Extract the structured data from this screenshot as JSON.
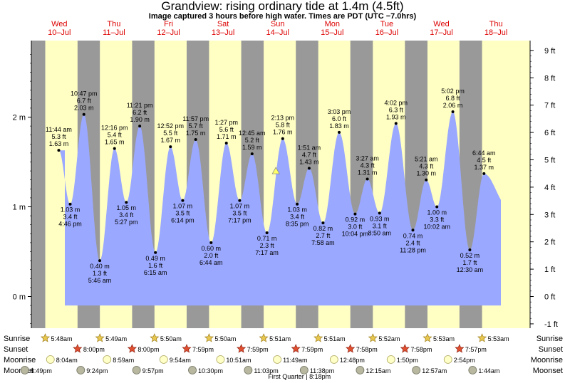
{
  "title": "Grandview: rising  ordinary tide at 1.4m (4.5ft)",
  "subtitle": "Image captured 3 hours before high water. Times are PDT (UTC −7.0hrs)",
  "colors": {
    "tide_fill": "#9aa8ff",
    "day": "#ffffc4",
    "night": "#999999",
    "day_label": "#dd0000"
  },
  "chart_data": {
    "type": "area",
    "title": "Grandview: rising  ordinary tide at 1.4m (4.5ft)",
    "days": [
      {
        "dow": "Wed",
        "date": "10–Jul"
      },
      {
        "dow": "Thu",
        "date": "11–Jul"
      },
      {
        "dow": "Fri",
        "date": "12–Jul"
      },
      {
        "dow": "Sat",
        "date": "13–Jul"
      },
      {
        "dow": "Sun",
        "date": "14–Jul"
      },
      {
        "dow": "Mon",
        "date": "15–Jul"
      },
      {
        "dow": "Tue",
        "date": "16–Jul"
      },
      {
        "dow": "Wed",
        "date": "17–Jul"
      },
      {
        "dow": "Thu",
        "date": "18–Jul"
      }
    ],
    "left_axis": {
      "unit": "m",
      "ticks": [
        "0 m",
        "1 m",
        "2 m"
      ],
      "values": [
        0,
        1,
        2
      ],
      "range": [
        -0.3,
        2.85
      ]
    },
    "right_axis": {
      "unit": "ft",
      "ticks": [
        "-1 ft",
        "0 ft",
        "1 ft",
        "2 ft",
        "3 ft",
        "4 ft",
        "5 ft",
        "6 ft",
        "7 ft",
        "8 ft",
        "9 ft"
      ],
      "values": [
        -1,
        0,
        1,
        2,
        3,
        4,
        5,
        6,
        7,
        8,
        9
      ]
    },
    "extremes": [
      {
        "day": 0,
        "time": "11:44 am",
        "m": 1.63,
        "ft": "5.3 ft",
        "m_label": "1.63 m",
        "type": "high"
      },
      {
        "day": 0,
        "time": "4:46 pm",
        "m": 1.03,
        "ft": "3.4 ft",
        "m_label": "1.03 m",
        "type": "low"
      },
      {
        "day": 0,
        "time": "10:47 pm",
        "m": 2.03,
        "ft": "6.7 ft",
        "m_label": "2.03 m",
        "type": "high"
      },
      {
        "day": 1,
        "time": "5:46 am",
        "m": 0.4,
        "ft": "1.3 ft",
        "m_label": "0.40 m",
        "type": "low"
      },
      {
        "day": 1,
        "time": "12:16 pm",
        "m": 1.65,
        "ft": "5.4 ft",
        "m_label": "1.65 m",
        "type": "high"
      },
      {
        "day": 1,
        "time": "5:27 pm",
        "m": 1.05,
        "ft": "3.4 ft",
        "m_label": "1.05 m",
        "type": "low"
      },
      {
        "day": 1,
        "time": "11:21 pm",
        "m": 1.9,
        "ft": "6.2 ft",
        "m_label": "1.90 m",
        "type": "high"
      },
      {
        "day": 2,
        "time": "6:15 am",
        "m": 0.49,
        "ft": "1.6 ft",
        "m_label": "0.49 m",
        "type": "low"
      },
      {
        "day": 2,
        "time": "12:52 pm",
        "m": 1.67,
        "ft": "5.5 ft",
        "m_label": "1.67 m",
        "type": "high"
      },
      {
        "day": 2,
        "time": "6:14 pm",
        "m": 1.07,
        "ft": "3.5 ft",
        "m_label": "1.07 m",
        "type": "low"
      },
      {
        "day": 2,
        "time": "11:57 pm",
        "m": 1.75,
        "ft": "5.7 ft",
        "m_label": "1.75 m",
        "type": "high"
      },
      {
        "day": 3,
        "time": "6:44 am",
        "m": 0.6,
        "ft": "2.0 ft",
        "m_label": "0.60 m",
        "type": "low"
      },
      {
        "day": 3,
        "time": "1:27 pm",
        "m": 1.71,
        "ft": "5.6 ft",
        "m_label": "1.71 m",
        "type": "high"
      },
      {
        "day": 3,
        "time": "7:17 pm",
        "m": 1.07,
        "ft": "3.5 ft",
        "m_label": "1.07 m",
        "type": "low"
      },
      {
        "day": 4,
        "time": "12:45 am",
        "m": 1.59,
        "ft": "5.2 ft",
        "m_label": "1.59 m",
        "type": "high"
      },
      {
        "day": 4,
        "time": "7:17 am",
        "m": 0.71,
        "ft": "2.3 ft",
        "m_label": "0.71 m",
        "type": "low"
      },
      {
        "day": 4,
        "time": "2:13 pm",
        "m": 1.76,
        "ft": "5.8 ft",
        "m_label": "1.76 m",
        "type": "high"
      },
      {
        "day": 4,
        "time": "8:35 pm",
        "m": 1.03,
        "ft": "3.4 ft",
        "m_label": "1.03 m",
        "type": "low"
      },
      {
        "day": 5,
        "time": "1:51 am",
        "m": 1.43,
        "ft": "4.7 ft",
        "m_label": "1.43 m",
        "type": "high"
      },
      {
        "day": 5,
        "time": "7:58 am",
        "m": 0.82,
        "ft": "2.7 ft",
        "m_label": "0.82 m",
        "type": "low"
      },
      {
        "day": 5,
        "time": "3:03 pm",
        "m": 1.83,
        "ft": "6.0 ft",
        "m_label": "1.83 m",
        "type": "high"
      },
      {
        "day": 5,
        "time": "10:04 pm",
        "m": 0.92,
        "ft": "3.0 ft",
        "m_label": "0.92 m",
        "type": "low"
      },
      {
        "day": 6,
        "time": "3:27 am",
        "m": 1.31,
        "ft": "4.3 ft",
        "m_label": "1.31 m",
        "type": "high"
      },
      {
        "day": 6,
        "time": "8:50 am",
        "m": 0.93,
        "ft": "3.1 ft",
        "m_label": "0.93 m",
        "type": "low"
      },
      {
        "day": 6,
        "time": "4:02 pm",
        "m": 1.93,
        "ft": "6.3 ft",
        "m_label": "1.93 m",
        "type": "high"
      },
      {
        "day": 6,
        "time": "11:28 pm",
        "m": 0.74,
        "ft": "2.4 ft",
        "m_label": "0.74 m",
        "type": "low"
      },
      {
        "day": 7,
        "time": "5:21 am",
        "m": 1.3,
        "ft": "4.3 ft",
        "m_label": "1.30 m",
        "type": "high"
      },
      {
        "day": 7,
        "time": "10:02 am",
        "m": 1.0,
        "ft": "3.3 ft",
        "m_label": "1.00 m",
        "type": "low"
      },
      {
        "day": 7,
        "time": "5:02 pm",
        "m": 2.06,
        "ft": "6.8 ft",
        "m_label": "2.06 m",
        "type": "high"
      },
      {
        "day": 8,
        "time": "12:30 am",
        "m": 0.52,
        "ft": "1.7 ft",
        "m_label": "0.52 m",
        "type": "low"
      },
      {
        "day": 8,
        "time": "6:44 am",
        "m": 1.37,
        "ft": "4.5 ft",
        "m_label": "1.37 m",
        "type": "high"
      }
    ],
    "now": {
      "day": 4,
      "time": "11:13 am",
      "m": 1.4
    },
    "sun_moon": {
      "labels": [
        "Sunrise",
        "Sunset",
        "Moonrise",
        "Moonset"
      ],
      "sunrise": [
        {
          "day": 0,
          "time": "5:48am"
        },
        {
          "day": 1,
          "time": "5:49am"
        },
        {
          "day": 2,
          "time": "5:50am"
        },
        {
          "day": 3,
          "time": "5:50am"
        },
        {
          "day": 4,
          "time": "5:51am"
        },
        {
          "day": 5,
          "time": "5:51am"
        },
        {
          "day": 6,
          "time": "5:52am"
        },
        {
          "day": 7,
          "time": "5:53am"
        },
        {
          "day": 8,
          "time": "5:53am"
        }
      ],
      "sunset": [
        {
          "day": 0,
          "time": "8:00pm"
        },
        {
          "day": 1,
          "time": "8:00pm"
        },
        {
          "day": 2,
          "time": "7:59pm"
        },
        {
          "day": 3,
          "time": "7:59pm"
        },
        {
          "day": 4,
          "time": "7:59pm"
        },
        {
          "day": 5,
          "time": "7:58pm"
        },
        {
          "day": 6,
          "time": "7:58pm"
        },
        {
          "day": 7,
          "time": "7:57pm"
        }
      ],
      "moonrise": [
        {
          "day": 0,
          "time": "8:04am"
        },
        {
          "day": 1,
          "time": "8:59am"
        },
        {
          "day": 2,
          "time": "9:54am"
        },
        {
          "day": 3,
          "time": "10:51am"
        },
        {
          "day": 4,
          "time": "11:49am"
        },
        {
          "day": 5,
          "time": "12:48pm"
        },
        {
          "day": 6,
          "time": "1:50pm"
        },
        {
          "day": 7,
          "time": "2:54pm"
        }
      ],
      "moonset": [
        {
          "day": -1,
          "time": "8:49pm"
        },
        {
          "day": 0,
          "time": "9:24pm"
        },
        {
          "day": 1,
          "time": "9:57pm"
        },
        {
          "day": 2,
          "time": "10:30pm"
        },
        {
          "day": 3,
          "time": "11:03pm"
        },
        {
          "day": 4,
          "time": "11:38pm"
        },
        {
          "day": 6,
          "time": "12:15am"
        },
        {
          "day": 7,
          "time": "12:57am"
        },
        {
          "day": 8,
          "time": "1:44am"
        }
      ],
      "moon_phase": "First Quarter | 8:18pm"
    }
  }
}
